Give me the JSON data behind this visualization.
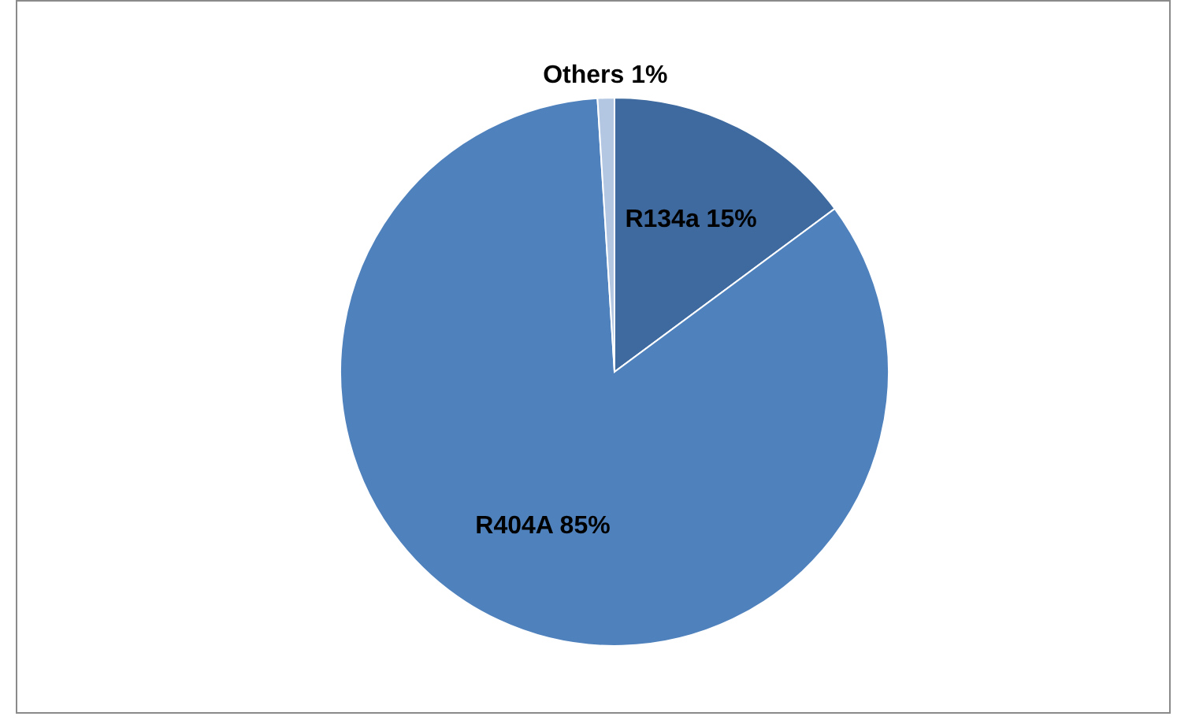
{
  "chart_data": {
    "type": "pie",
    "categories": [
      "R134a",
      "R404A",
      "Others"
    ],
    "values": [
      15,
      85,
      1
    ],
    "value_labels": [
      "15%",
      "85%",
      "1%"
    ],
    "colors": [
      "#3e6a9f",
      "#4f81bd",
      "#b3c7e2"
    ],
    "legend": false
  }
}
